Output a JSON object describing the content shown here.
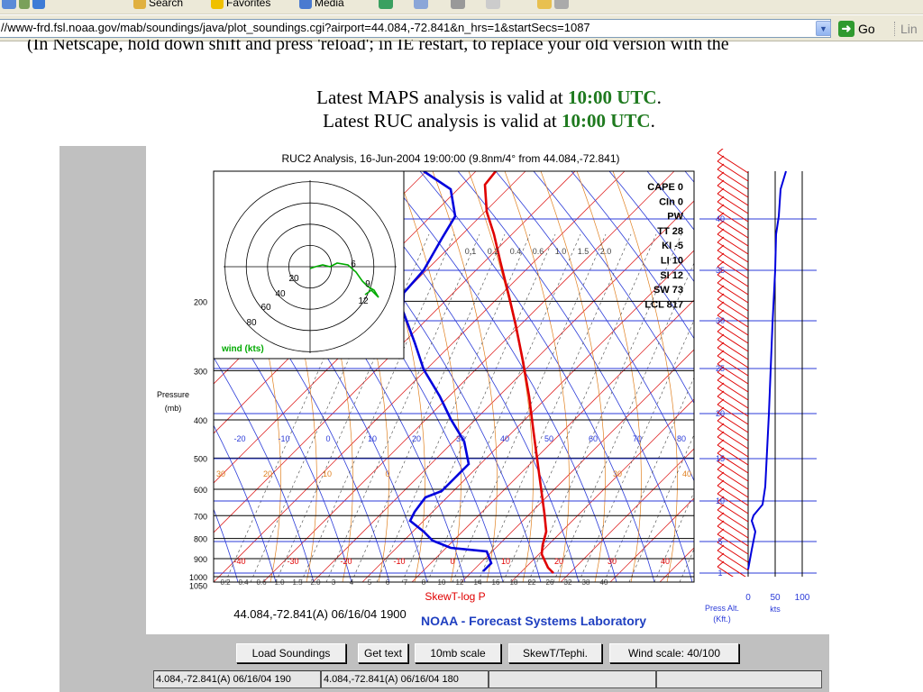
{
  "browser": {
    "toolbar": {
      "search_label": "Search",
      "favorites_label": "Favorites",
      "media_label": "Media"
    },
    "address": {
      "url": "//www-frd.fsl.noaa.gov/mab/soundings/java/plot_soundings.cgi?airport=44.084,-72.841&n_hrs=1&startSecs=1087",
      "go_label": "Go",
      "links_label": "Lin"
    }
  },
  "page": {
    "cut_instruction": "(In Netscape, hold down shift and press 'reload'; in IE restart, to replace your old version with the",
    "maps_prefix": "Latest MAPS analysis is valid at",
    "maps_time": "10:00 UTC",
    "ruc_prefix": "Latest RUC analysis is valid at",
    "ruc_time": "10:00 UTC",
    "period": "."
  },
  "plot": {
    "title": "RUC2 Analysis, 16-Jun-2004 19:00:00 (9.8nm/4° from 44.084,-72.841)",
    "pressure_label": "Pressure",
    "pressure_unit": "(mb)",
    "pressure_ticks": [
      "200",
      "300",
      "400",
      "500",
      "600",
      "700",
      "800",
      "900",
      "1000",
      "1050"
    ],
    "indices": [
      "CAPE 0",
      "CIn 0",
      "PW",
      "TT 28",
      "KI -5",
      "LI 10",
      "SI 12",
      "SW 73",
      "LCL 817"
    ],
    "hodograph": {
      "rings": [
        "20",
        "40",
        "60",
        "80"
      ],
      "label": "wind (kts)",
      "marks": [
        "6",
        "9",
        "12"
      ]
    },
    "temp_labels_upper": [
      "-20",
      "-10",
      "0",
      "10",
      "20",
      "30",
      "40",
      "50",
      "60",
      "70",
      "80"
    ],
    "temp_labels_600": [
      "30",
      "20",
      "10",
      "0",
      "30",
      "40"
    ],
    "temp_labels_lower": [
      "-40",
      "-30",
      "-20",
      "-10",
      "0",
      "10",
      "20",
      "30",
      "40"
    ],
    "mixing_upper": [
      "0.1",
      "0.2",
      "0.4",
      "0.6",
      "1.0",
      "1.5",
      "2.0"
    ],
    "mixing_lower": [
      "0.2",
      "0.4",
      "0.6",
      "1.0",
      "1.5",
      "2.0",
      "3",
      "4",
      "5",
      "6",
      "7",
      "8",
      "10",
      "12",
      "14",
      "16",
      "18",
      "22",
      "26",
      "32",
      "38",
      "40"
    ],
    "bottom_label": "SkewT-log P",
    "station_label": "44.084,-72.841(A) 06/16/04 1900",
    "lab_label": "NOAA - Forecast Systems Laboratory",
    "alt_label": "Press Alt.",
    "alt_unit": "(Kft.)",
    "alt_ticks": [
      "40",
      "35",
      "30",
      "25",
      "20",
      "15",
      "10",
      "5",
      "1"
    ],
    "wind_axis": [
      "0",
      "50",
      "100"
    ],
    "wind_unit": "kts"
  },
  "controls": {
    "buttons": [
      "Load Soundings",
      "Get text",
      "10mb scale",
      "SkewT/Tephi.",
      "Wind scale: 40/100"
    ],
    "lists": [
      "4.084,-72.841(A) 06/16/04 190",
      "4.084,-72.841(A) 06/16/04 180",
      "",
      ""
    ]
  },
  "colors": {
    "temp": "#e00000",
    "dewpoint": "#0000dd",
    "hodo": "#00aa00",
    "maps_time": "#1f7a1f",
    "lab": "#1f3fc0"
  },
  "icons": [
    "back-icon",
    "forward-icon",
    "refresh-icon",
    "search-icon",
    "favorites-star-icon",
    "media-icon",
    "history-icon",
    "mail-icon",
    "print-icon",
    "edit-icon",
    "messenger-icon",
    "go-arrow-icon"
  ]
}
